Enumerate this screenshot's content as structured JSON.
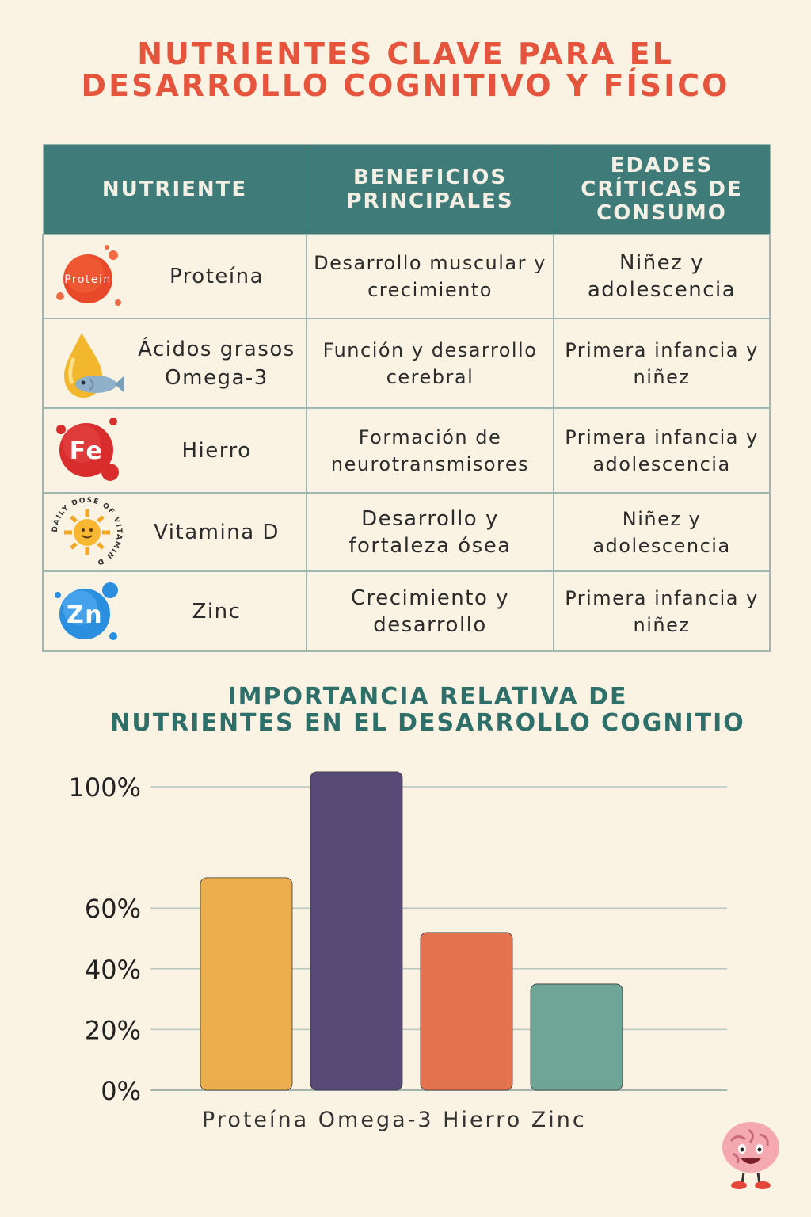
{
  "title": {
    "line1": "NUTRIENTES CLAVE PARA EL",
    "line2": "DESARROLLO COGNITIVO Y FÍSICO"
  },
  "table": {
    "headers": [
      "NUTRIENTE",
      "BENEFICIOS PRINCIPALES",
      "EDADES CRÍTICAS DE CONSUMO"
    ],
    "rows": [
      {
        "icon": "protein-icon",
        "icon_text": "Protein",
        "nutrient": "Proteína",
        "benefit": "Desarrollo muscular y crecimiento",
        "ages": "Niñez y adolescencia"
      },
      {
        "icon": "omega3-fish-oil-icon",
        "icon_text": "",
        "nutrient": "Ácidos grasos Omega-3",
        "benefit": "Función y desarrollo cerebral",
        "ages": "Primera infancia y niñez"
      },
      {
        "icon": "iron-fe-icon",
        "icon_text": "Fe",
        "nutrient": "Hierro",
        "benefit": "Formación de neurotransmisores",
        "ages": "Primera infancia y adolescencia"
      },
      {
        "icon": "vitamin-d-sun-icon",
        "icon_text": "DAILY DOSE OF VITAMIN D",
        "nutrient": "Vitamina D",
        "benefit": "Desarrollo y fortaleza ósea",
        "ages": "Niñez y adolescencia"
      },
      {
        "icon": "zinc-zn-icon",
        "icon_text": "Zn",
        "nutrient": "Zinc",
        "benefit": "Crecimiento y desarrollo",
        "ages": "Primera infancia y niñez"
      }
    ]
  },
  "colors": {
    "title": "#e5553d",
    "header_bg": "#3f7c79",
    "chart_title": "#2f6f6a",
    "background": "#faf3e3"
  },
  "chart_data": {
    "type": "bar",
    "title_line1": "IMPORTANCIA RELATIVA DE",
    "title_line2": "NUTRIENTES EN EL DESARROLLO COGNITIO",
    "categories": [
      "Proteína",
      "Omega-3",
      "Hierro",
      "Zinc"
    ],
    "values": [
      70,
      105,
      52,
      35
    ],
    "colors": [
      "#ecad4d",
      "#584a77",
      "#e27250",
      "#6da596"
    ],
    "y_ticks": [
      0,
      20,
      40,
      60,
      100
    ],
    "y_tick_labels": [
      "0%",
      "20%",
      "40%",
      "60%",
      "100%"
    ],
    "ylim": [
      0,
      100
    ],
    "grid": true,
    "xlabel": "",
    "ylabel": ""
  },
  "decoration": {
    "brain_icon": "brain-mascot-icon"
  }
}
